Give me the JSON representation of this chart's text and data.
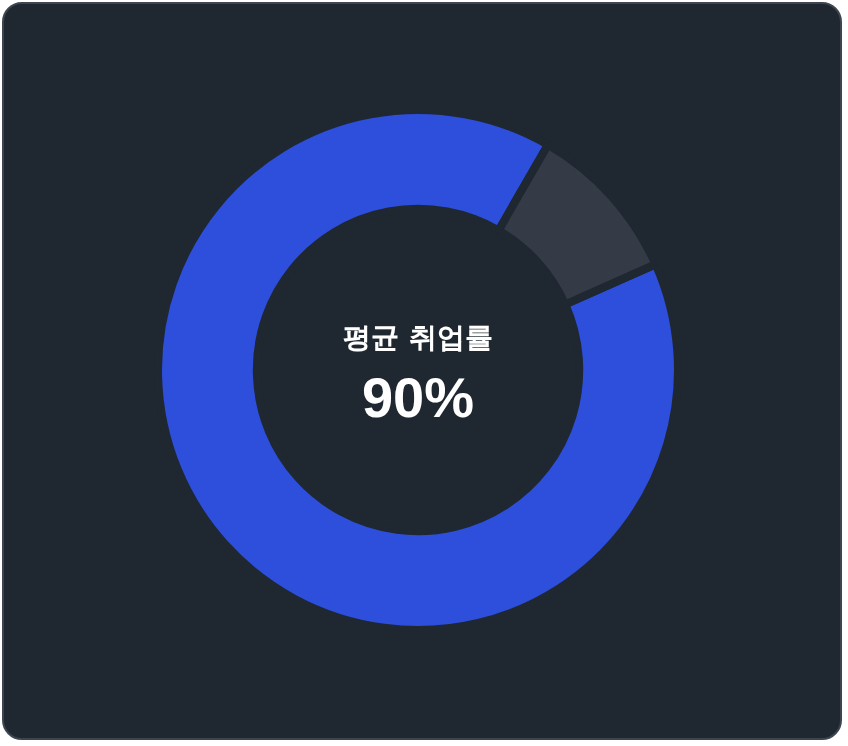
{
  "chart_data": {
    "type": "donut",
    "title": "평균 취업률",
    "categories": [
      null,
      null
    ],
    "values": [
      90,
      10
    ],
    "colors": [
      "#2d4fdc",
      "#343b47"
    ],
    "value_labels": [
      "90%",
      null
    ]
  }
}
